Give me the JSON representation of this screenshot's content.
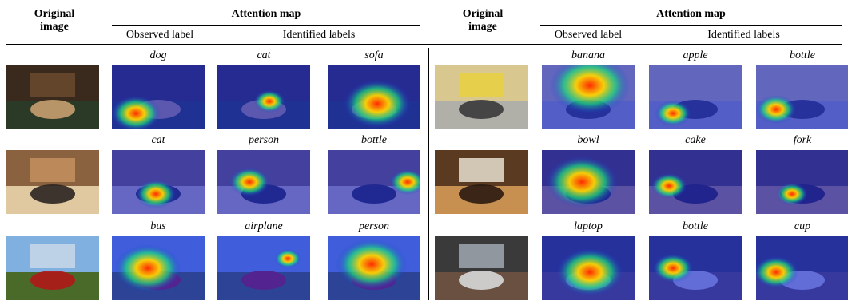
{
  "headers": {
    "original_image": "Original\nimage",
    "attention_map": "Attention map",
    "observed_label": "Observed label",
    "identified_labels": "Identified labels"
  },
  "left_rows": [
    {
      "scene": "living room",
      "labels": [
        "dog",
        "cat",
        "sofa"
      ]
    },
    {
      "scene": "woman at table",
      "labels": [
        "cat",
        "person",
        "bottle"
      ]
    },
    {
      "scene": "red bus",
      "labels": [
        "bus",
        "airplane",
        "person"
      ]
    }
  ],
  "right_rows": [
    {
      "scene": "market stall",
      "labels": [
        "banana",
        "apple",
        "bottle"
      ]
    },
    {
      "scene": "cake on plates",
      "labels": [
        "bowl",
        "cake",
        "fork"
      ]
    },
    {
      "scene": "laptop on desk",
      "labels": [
        "laptop",
        "bottle",
        "cup"
      ]
    }
  ],
  "colors": {
    "attention_base": "#1a2bd9",
    "hot": "#ff2a00",
    "warm": "#ffd400",
    "mid": "#19e07a"
  }
}
